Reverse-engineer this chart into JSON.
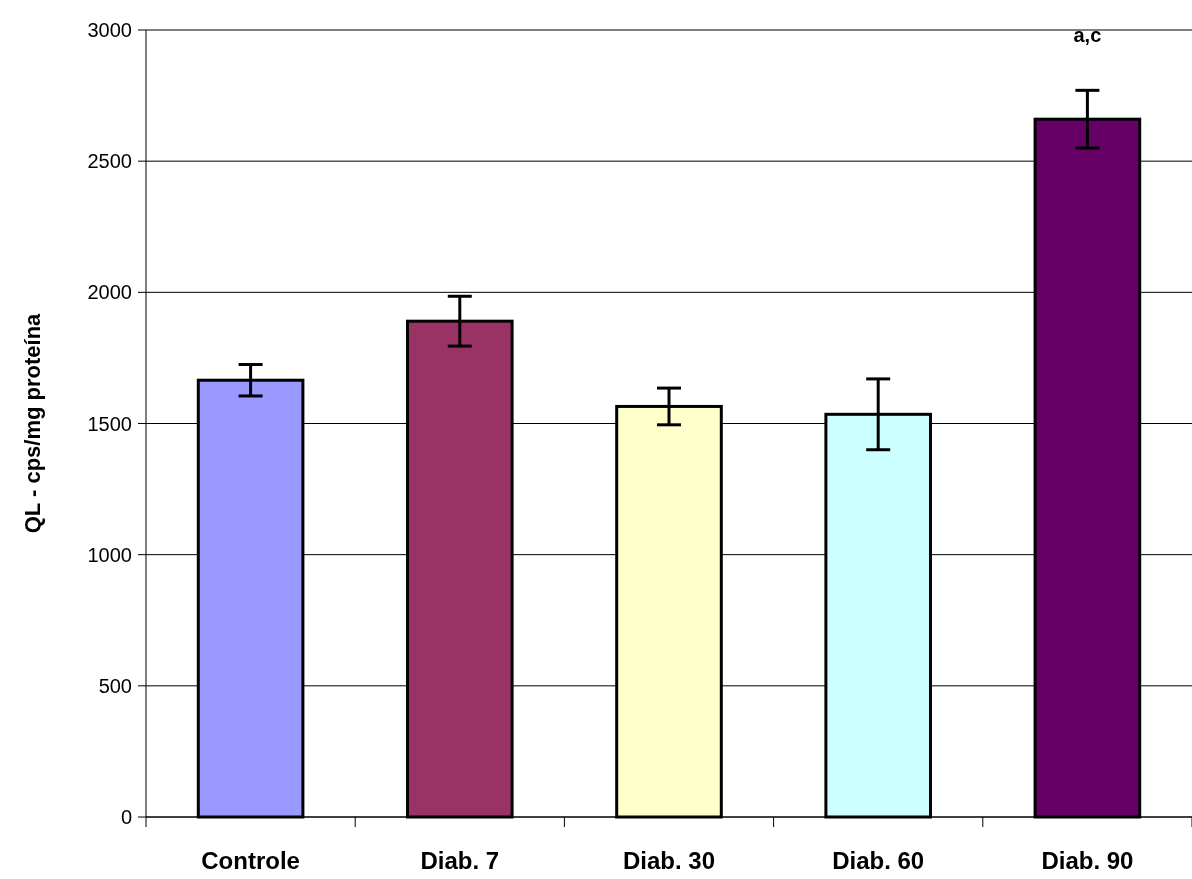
{
  "chart_data": {
    "type": "bar",
    "ylabel": "QL - cps/mg proteína",
    "categories": [
      "Controle",
      "Diab. 7",
      "Diab. 30",
      "Diab. 60",
      "Diab. 90"
    ],
    "values": [
      1665,
      1890,
      1565,
      1535,
      2660
    ],
    "errors": [
      60,
      95,
      70,
      135,
      110
    ],
    "colors": [
      "#9999ff",
      "#993366",
      "#ffffcc",
      "#ccffff",
      "#660066"
    ],
    "ylim": [
      0,
      3000
    ],
    "yticks": [
      0,
      500,
      1000,
      1500,
      2000,
      2500,
      3000
    ],
    "grid": "y",
    "annotations": [
      "a,c"
    ]
  }
}
